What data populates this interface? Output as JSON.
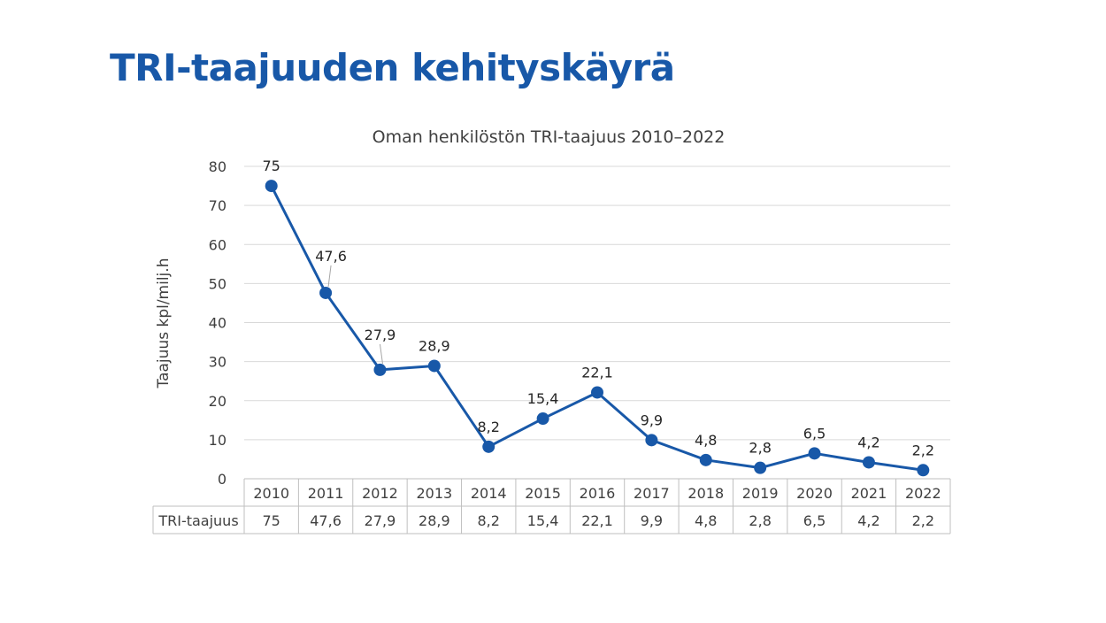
{
  "slide": {
    "title": "TRI-taajuuden kehityskäyrä",
    "title_color": "#1858a8"
  },
  "chart_data": {
    "type": "line",
    "title": "Oman henkilöstön TRI-taajuus 2010–2022",
    "ylabel": "Taajuus kpl/milj.h",
    "xlabel": "",
    "ylim": [
      0,
      80
    ],
    "yticks": [
      0,
      10,
      20,
      30,
      40,
      50,
      60,
      70,
      80
    ],
    "grid": true,
    "legend": "none",
    "categories": [
      "2010",
      "2011",
      "2012",
      "2013",
      "2014",
      "2015",
      "2016",
      "2017",
      "2018",
      "2019",
      "2020",
      "2021",
      "2022"
    ],
    "series": [
      {
        "name": "TRI-taajuus",
        "values": [
          75,
          47.6,
          27.9,
          28.9,
          8.2,
          15.4,
          22.1,
          9.9,
          4.8,
          2.8,
          6.5,
          4.2,
          2.2
        ],
        "labels": [
          "75",
          "47,6",
          "27,9",
          "28,9",
          "8,2",
          "15,4",
          "22,1",
          "9,9",
          "4,8",
          "2,8",
          "6,5",
          "4,2",
          "2,2"
        ],
        "color": "#1858a8"
      }
    ],
    "data_table": true
  },
  "colors": {
    "text": "#404040",
    "grid": "#d9d9d9",
    "axis": "#bfbfbf"
  }
}
